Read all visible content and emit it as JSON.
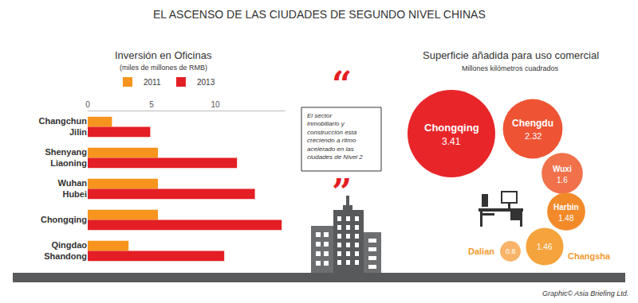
{
  "title": "EL ASCENSO DE LAS CIUDADES DE SEGUNDO NIVEL CHINAS",
  "quote": "El sector inmobiliario y construcción está creciendo a ritmo acelerado en las ciudades de Nivel 2",
  "quote_marks": [
    "“",
    "”"
  ],
  "credit": "Graphic© Asia Briefing Ltd.",
  "chart_data": [
    {
      "type": "bar",
      "title": "Inversión en Oficinas",
      "subtitle": "(miles de millones de RMB)",
      "orientation": "horizontal",
      "categories": [
        "Changchun Jilin",
        "Shenyang Liaoning",
        "Wuhan Hubei",
        "Chongqing",
        "Qingdao Shandong"
      ],
      "series": [
        {
          "name": "2011",
          "color": "#f7941d",
          "values": [
            1.9,
            5.5,
            5.5,
            5.5,
            3.2
          ]
        },
        {
          "name": "2013",
          "color": "#e31e24",
          "values": [
            4.9,
            11.7,
            13.1,
            15.2,
            10.7
          ]
        }
      ],
      "xlim": [
        0,
        15.5
      ],
      "xticks": [
        0,
        5,
        10
      ],
      "grid": false,
      "legend": "top"
    },
    {
      "type": "bubble",
      "title": "Superficie añadida para uso comercial",
      "subtitle": "Millones kilómetros cuadrados",
      "categories": [
        "Chongqing",
        "Chengdu",
        "Wuxi",
        "Harbin",
        "Changsha",
        "Dalian"
      ],
      "values": [
        3.41,
        2.32,
        1.6,
        1.48,
        1.46,
        0.8
      ],
      "colors": [
        "#e8262a",
        "#ee5433",
        "#f0714a",
        "#f28a2a",
        "#f5a33c",
        "#f9b46a"
      ],
      "data_labels": true,
      "tick_labels": false
    }
  ]
}
